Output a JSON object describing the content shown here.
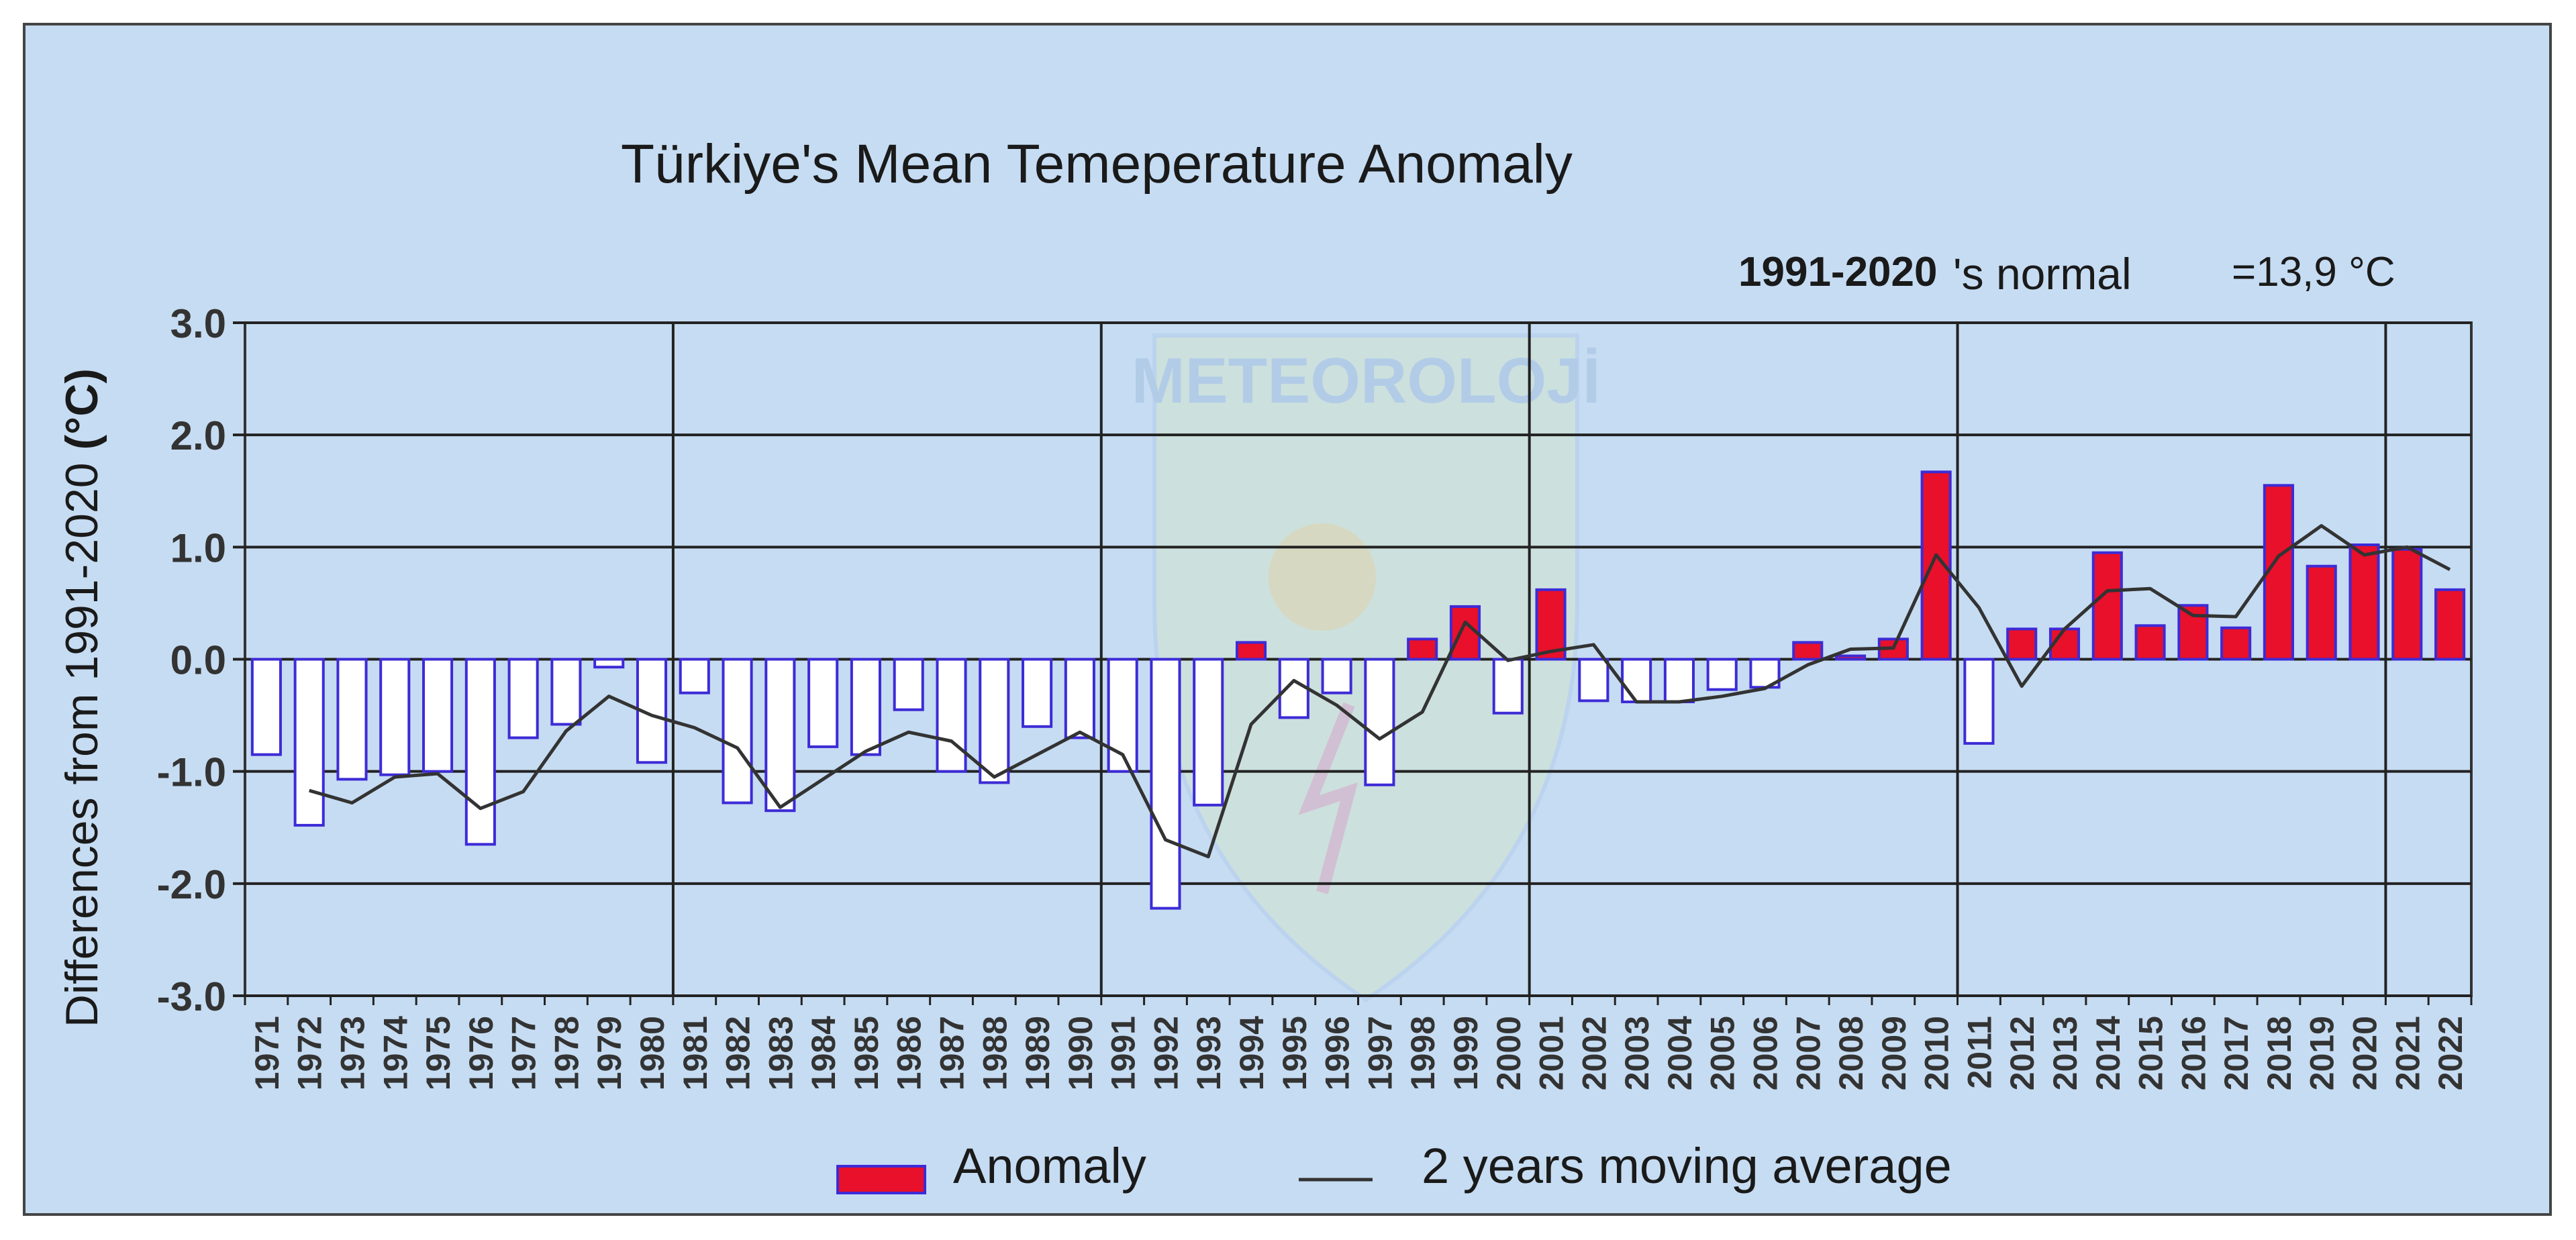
{
  "chart_data": {
    "type": "bar",
    "title": "Türkiye's Mean Temeperature Anomaly",
    "ylabel_parts": {
      "main": "Differences from 1991-2020",
      "unit": "(°C)"
    },
    "normal_note": {
      "period": "1991-2020",
      "suffix": "'s normal",
      "value": "=13,9 °C"
    },
    "watermark": "METEOROLOJİ",
    "ylim": [
      -3.0,
      3.0
    ],
    "yticks": [
      "3.0",
      "2.0",
      "1.0",
      "0.0",
      "-1.0",
      "-2.0",
      "-3.0"
    ],
    "grid": true,
    "legend_position": "bottom",
    "colors": {
      "positive": "#e8102a",
      "negative": "#ffffff",
      "bar_edge": "#3d2bd6",
      "line": "#333333",
      "background": "#c6dcf2"
    },
    "categories": [
      "1971",
      "1972",
      "1973",
      "1974",
      "1975",
      "1976",
      "1977",
      "1978",
      "1979",
      "1980",
      "1981",
      "1982",
      "1983",
      "1984",
      "1985",
      "1986",
      "1987",
      "1988",
      "1989",
      "1990",
      "1991",
      "1992",
      "1993",
      "1994",
      "1995",
      "1996",
      "1997",
      "1998",
      "1999",
      "2000",
      "2001",
      "2002",
      "2003",
      "2004",
      "2005",
      "2006",
      "2007",
      "2008",
      "2009",
      "2010",
      "2011",
      "2012",
      "2013",
      "2014",
      "2015",
      "2016",
      "2017",
      "2018",
      "2019",
      "2020",
      "2021",
      "2022"
    ],
    "series": [
      {
        "name": "Anomaly",
        "values": [
          -0.85,
          -1.48,
          -1.07,
          -1.03,
          -1.0,
          -1.65,
          -0.7,
          -0.58,
          -0.07,
          -0.92,
          -0.3,
          -1.28,
          -1.35,
          -0.78,
          -0.85,
          -0.45,
          -1.0,
          -1.1,
          -0.6,
          -0.7,
          -1.0,
          -2.22,
          -1.3,
          0.15,
          -0.52,
          -0.3,
          -1.12,
          0.18,
          0.47,
          -0.48,
          0.62,
          -0.37,
          -0.38,
          -0.38,
          -0.27,
          -0.25,
          0.15,
          0.03,
          0.18,
          1.67,
          -0.75,
          0.27,
          0.27,
          0.95,
          0.3,
          0.48,
          0.28,
          1.55,
          0.83,
          1.02,
          0.98,
          0.62
        ]
      },
      {
        "name": "2 years moving average",
        "type": "line",
        "values": [
          null,
          -1.17,
          -1.28,
          -1.05,
          -1.02,
          -1.33,
          -1.18,
          -0.64,
          -0.33,
          -0.5,
          -0.61,
          -0.79,
          -1.32,
          -1.07,
          -0.82,
          -0.65,
          -0.73,
          -1.05,
          -0.85,
          -0.65,
          -0.85,
          -1.61,
          -1.76,
          -0.58,
          -0.19,
          -0.41,
          -0.71,
          -0.47,
          0.33,
          -0.01,
          0.07,
          0.13,
          -0.38,
          -0.38,
          -0.33,
          -0.26,
          -0.05,
          0.09,
          0.1,
          0.93,
          0.46,
          -0.24,
          0.27,
          0.61,
          0.63,
          0.39,
          0.38,
          0.92,
          1.19,
          0.93,
          1.0,
          0.8
        ]
      }
    ],
    "decade_lines": [
      "1980",
      "1990",
      "2000",
      "2010",
      "2020"
    ]
  }
}
